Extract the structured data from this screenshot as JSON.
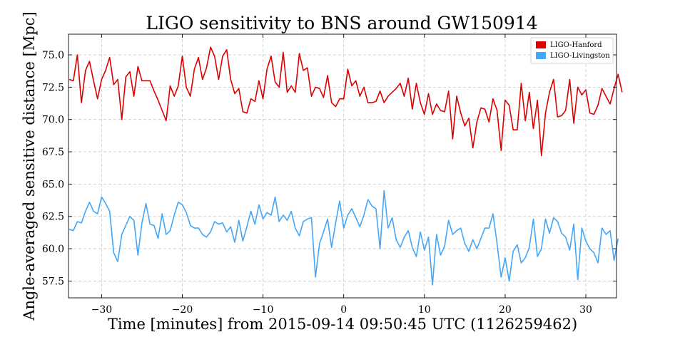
{
  "chart_data": {
    "type": "line",
    "title": "LIGO sensitivity to BNS around GW150914",
    "xlabel": "Time [minutes] from 2015-09-14 09:50:45 UTC (1126259462)",
    "ylabel": "Angle-averaged sensitive distance [Mpc]",
    "xlim": [
      -34.1,
      33.8
    ],
    "ylim": [
      56.2,
      76.6
    ],
    "xticks": [
      -30,
      -20,
      -10,
      0,
      10,
      20,
      30
    ],
    "xtick_labels": [
      "−30",
      "−20",
      "−10",
      "0",
      "10",
      "20",
      "30"
    ],
    "yticks": [
      57.5,
      60.0,
      62.5,
      65.0,
      67.5,
      70.0,
      72.5,
      75.0
    ],
    "ytick_labels": [
      "57.5",
      "60.0",
      "62.5",
      "65.0",
      "67.5",
      "70.0",
      "72.5",
      "75.0"
    ],
    "grid": true,
    "legend_position": "top-right",
    "x_start": -34.0,
    "x_step": 0.5,
    "series": [
      {
        "name": "LIGO-Hanford",
        "color": "#dd0000",
        "values": [
          73.1,
          73.0,
          75.0,
          71.3,
          73.8,
          74.5,
          73.0,
          71.6,
          73.1,
          73.8,
          74.8,
          72.7,
          73.1,
          70.0,
          73.3,
          73.7,
          71.8,
          74.1,
          73.0,
          73.0,
          73.0,
          72.2,
          71.5,
          70.7,
          69.9,
          72.6,
          71.8,
          72.6,
          74.9,
          72.5,
          71.8,
          73.9,
          74.8,
          73.1,
          74.0,
          75.6,
          74.9,
          73.1,
          74.9,
          75.4,
          73.1,
          72.0,
          72.4,
          70.6,
          70.5,
          71.6,
          71.4,
          73.0,
          71.6,
          73.9,
          74.9,
          72.9,
          72.5,
          75.2,
          72.1,
          72.6,
          72.1,
          75.1,
          73.8,
          74.0,
          71.8,
          72.5,
          72.4,
          71.7,
          73.4,
          71.3,
          71.0,
          71.6,
          71.6,
          73.9,
          72.6,
          73.0,
          71.8,
          72.5,
          71.3,
          71.3,
          71.4,
          72.2,
          71.3,
          71.8,
          72.1,
          72.4,
          72.8,
          71.8,
          73.2,
          70.8,
          72.8,
          71.3,
          70.4,
          72.0,
          70.4,
          71.2,
          70.7,
          70.6,
          72.2,
          68.5,
          71.8,
          70.5,
          69.5,
          70.1,
          67.8,
          69.8,
          70.9,
          70.8,
          69.8,
          71.6,
          70.7,
          67.6,
          71.5,
          71.1,
          69.2,
          69.2,
          72.8,
          69.9,
          72.1,
          69.3,
          71.5,
          67.2,
          70.5,
          72.1,
          73.1,
          70.2,
          70.3,
          70.7,
          73.1,
          69.7,
          72.5,
          71.9,
          72.3,
          70.5,
          70.4,
          71.1,
          72.4,
          71.8,
          71.2,
          72.4,
          73.5,
          72.1
        ]
      },
      {
        "name": "LIGO-Livingston",
        "color": "#44a6f8",
        "values": [
          61.5,
          61.4,
          62.1,
          62.0,
          62.9,
          63.6,
          62.9,
          62.7,
          64.0,
          63.5,
          62.9,
          59.7,
          59.0,
          61.1,
          61.8,
          62.5,
          62.2,
          59.5,
          62.0,
          63.5,
          61.9,
          61.8,
          60.8,
          62.7,
          61.1,
          61.4,
          62.6,
          63.6,
          63.4,
          62.8,
          61.8,
          61.6,
          61.6,
          61.1,
          60.9,
          61.3,
          62.1,
          61.9,
          62.0,
          61.3,
          61.7,
          60.5,
          62.2,
          60.6,
          61.7,
          62.9,
          61.9,
          63.4,
          62.3,
          62.8,
          62.6,
          64.0,
          62.1,
          62.6,
          62.2,
          62.9,
          61.6,
          61.0,
          62.1,
          62.3,
          62.4,
          57.8,
          60.4,
          61.3,
          62.3,
          60.1,
          62.0,
          63.7,
          61.6,
          62.6,
          63.1,
          62.4,
          61.7,
          62.6,
          63.8,
          63.3,
          63.1,
          60.0,
          64.5,
          61.6,
          62.4,
          60.7,
          60.1,
          60.9,
          61.4,
          60.1,
          59.4,
          61.3,
          59.9,
          60.9,
          57.2,
          61.1,
          59.5,
          60.2,
          62.2,
          61.1,
          61.4,
          61.6,
          60.4,
          59.8,
          60.7,
          60.0,
          60.8,
          61.6,
          61.6,
          62.7,
          60.4,
          57.8,
          59.3,
          57.5,
          59.8,
          60.3,
          58.9,
          59.3,
          60.1,
          62.3,
          59.4,
          60.0,
          62.3,
          61.2,
          62.4,
          62.1,
          61.2,
          60.9,
          59.9,
          61.9,
          57.6,
          61.6,
          60.6,
          60.0,
          59.7,
          58.9,
          61.6,
          61.1,
          61.4,
          59.1,
          60.8
        ]
      }
    ]
  }
}
